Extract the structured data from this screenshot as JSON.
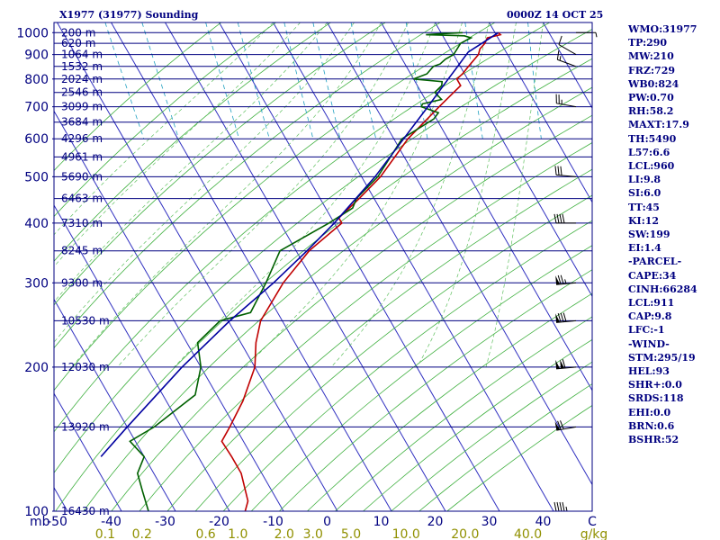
{
  "chart_data": {
    "type": "line",
    "title": "X1977 (31977) Sounding",
    "time_label": "0000Z 14 OCT 25",
    "pressure_ticks": [
      {
        "p": 100,
        "label": "100"
      },
      {
        "p": 200,
        "label": "200"
      },
      {
        "p": 300,
        "label": "300"
      },
      {
        "p": 400,
        "label": "400"
      },
      {
        "p": 500,
        "label": "500"
      },
      {
        "p": 600,
        "label": "600"
      },
      {
        "p": 700,
        "label": "700"
      },
      {
        "p": 800,
        "label": "800"
      },
      {
        "p": 900,
        "label": "900"
      },
      {
        "p": 1000,
        "label": "1000"
      }
    ],
    "height_levels": [
      {
        "p": 100,
        "label": "16430 m"
      },
      {
        "p": 150,
        "label": "13920 m"
      },
      {
        "p": 200,
        "label": "12030 m"
      },
      {
        "p": 250,
        "label": "10530 m"
      },
      {
        "p": 300,
        "label": "9300 m"
      },
      {
        "p": 350,
        "label": "8245 m"
      },
      {
        "p": 400,
        "label": "7310 m"
      },
      {
        "p": 450,
        "label": "6463 m"
      },
      {
        "p": 500,
        "label": "5690 m"
      },
      {
        "p": 550,
        "label": "4961 m"
      },
      {
        "p": 600,
        "label": "4296 m"
      },
      {
        "p": 650,
        "label": "3684 m"
      },
      {
        "p": 700,
        "label": "3099 m"
      },
      {
        "p": 750,
        "label": "2546 m"
      },
      {
        "p": 800,
        "label": "2024 m"
      },
      {
        "p": 850,
        "label": "1532 m"
      },
      {
        "p": 900,
        "label": "1064 m"
      },
      {
        "p": 950,
        "label": "620 m"
      },
      {
        "p": 1000,
        "label": "200 m"
      }
    ],
    "temperature_ticks": [
      {
        "t": -50,
        "label": "-50"
      },
      {
        "t": -40,
        "label": "-40"
      },
      {
        "t": -30,
        "label": "-30"
      },
      {
        "t": -20,
        "label": "-20"
      },
      {
        "t": -10,
        "label": "-10"
      },
      {
        "t": 0,
        "label": "0"
      },
      {
        "t": 10,
        "label": "10"
      },
      {
        "t": 20,
        "label": "20"
      },
      {
        "t": 30,
        "label": "30"
      },
      {
        "t": 40,
        "label": "40"
      }
    ],
    "x_axis_unit": "C",
    "y_axis_unit": "mb",
    "mixing_ratio_ticks": [
      {
        "w": 0.1,
        "label": "0.1"
      },
      {
        "w": 0.2,
        "label": "0.2"
      },
      {
        "w": 0.6,
        "label": "0.6"
      },
      {
        "w": 1.0,
        "label": "1.0"
      },
      {
        "w": 2.0,
        "label": "2.0"
      },
      {
        "w": 3.0,
        "label": "3.0"
      },
      {
        "w": 5.0,
        "label": "5.0"
      },
      {
        "w": 10.0,
        "label": "10.0"
      },
      {
        "w": 20.0,
        "label": "20.0"
      },
      {
        "w": 40.0,
        "label": "40.0"
      }
    ],
    "mixing_ratio_unit": "g/kg",
    "xlim": [
      -50,
      50
    ],
    "ylim": [
      1050,
      100
    ],
    "y_scale": "log",
    "series": [
      {
        "role": "temperature",
        "color": "#c00000",
        "points": [
          [
            1000,
            30.6
          ],
          [
            990,
            30.8
          ],
          [
            975,
            28.0
          ],
          [
            950,
            27.0
          ],
          [
            925,
            25.5
          ],
          [
            900,
            24.6
          ],
          [
            850,
            21.5
          ],
          [
            820,
            19.6
          ],
          [
            800,
            18.0
          ],
          [
            775,
            18.0
          ],
          [
            750,
            16.0
          ],
          [
            700,
            11.8
          ],
          [
            600,
            2.6
          ],
          [
            500,
            -6.5
          ],
          [
            450,
            -12.8
          ],
          [
            410,
            -18.6
          ],
          [
            400,
            -18.6
          ],
          [
            350,
            -27.6
          ],
          [
            300,
            -35.8
          ],
          [
            250,
            -44.0
          ],
          [
            225,
            -47.2
          ],
          [
            200,
            -50.0
          ],
          [
            170,
            -55.8
          ],
          [
            150,
            -61.0
          ],
          [
            140,
            -64.0
          ],
          [
            130,
            -63.8
          ],
          [
            120,
            -63.8
          ],
          [
            105,
            -65.5
          ],
          [
            100,
            -67.1
          ]
        ]
      },
      {
        "role": "dewpoint",
        "color": "#006000",
        "points": [
          [
            1000,
            24.0
          ],
          [
            995,
            20.0
          ],
          [
            990,
            17.0
          ],
          [
            985,
            24.0
          ],
          [
            975,
            25.0
          ],
          [
            950,
            22.5
          ],
          [
            900,
            20.0
          ],
          [
            880,
            18.0
          ],
          [
            860,
            16.5
          ],
          [
            850,
            15.0
          ],
          [
            820,
            13.0
          ],
          [
            800,
            10.0
          ],
          [
            790,
            15.0
          ],
          [
            775,
            14.5
          ],
          [
            750,
            12.5
          ],
          [
            725,
            13.0
          ],
          [
            710,
            9.0
          ],
          [
            700,
            8.5
          ],
          [
            680,
            11.0
          ],
          [
            660,
            9.5
          ],
          [
            600,
            1.5
          ],
          [
            500,
            -7.0
          ],
          [
            450,
            -13.3
          ],
          [
            430,
            -15.0
          ],
          [
            400,
            -21.0
          ],
          [
            350,
            -33.0
          ],
          [
            300,
            -39.0
          ],
          [
            260,
            -45.0
          ],
          [
            250,
            -51.5
          ],
          [
            225,
            -58.0
          ],
          [
            200,
            -60.0
          ],
          [
            175,
            -64.0
          ],
          [
            150,
            -75.0
          ],
          [
            140,
            -81.0
          ],
          [
            130,
            -80.0
          ],
          [
            120,
            -83.0
          ],
          [
            110,
            -84.0
          ],
          [
            100,
            -85.0
          ]
        ]
      },
      {
        "role": "parcel",
        "color": "#0000a0",
        "points": [
          [
            1000,
            30.6
          ],
          [
            960,
            27.3
          ],
          [
            911,
            23.0
          ],
          [
            850,
            19.5
          ],
          [
            800,
            16.4
          ],
          [
            700,
            9.7
          ],
          [
            600,
            1.8
          ],
          [
            500,
            -7.5
          ],
          [
            400,
            -20.0
          ],
          [
            350,
            -28.0
          ],
          [
            300,
            -37.6
          ],
          [
            250,
            -49.7
          ],
          [
            200,
            -63.5
          ],
          [
            150,
            -80.0
          ],
          [
            130,
            -88.0
          ]
        ]
      }
    ],
    "wind_barbs": [
      {
        "p": 1000,
        "dir": 90,
        "kt": 5
      },
      {
        "p": 900,
        "dir": 300,
        "kt": 10
      },
      {
        "p": 850,
        "dir": 290,
        "kt": 15
      },
      {
        "p": 700,
        "dir": 280,
        "kt": 25
      },
      {
        "p": 500,
        "dir": 275,
        "kt": 30
      },
      {
        "p": 400,
        "dir": 270,
        "kt": 40
      },
      {
        "p": 300,
        "dir": 265,
        "kt": 75
      },
      {
        "p": 250,
        "dir": 265,
        "kt": 80
      },
      {
        "p": 200,
        "dir": 265,
        "kt": 110
      },
      {
        "p": 150,
        "dir": 260,
        "kt": 70
      },
      {
        "p": 100,
        "dir": 270,
        "kt": 45
      }
    ]
  },
  "stats": [
    "WMO:31977",
    "TP:290",
    "MW:210",
    "FRZ:729",
    "WB0:824",
    "PW:0.70",
    "RH:58.2",
    "MAXT:17.9",
    "TH:5490",
    "L57:6.6",
    "LCL:960",
    "LI:9.8",
    "SI:6.0",
    "TT:45",
    "KI:12",
    "SW:199",
    "EI:1.4",
    "-PARCEL-",
    "CAPE:34",
    "CINH:66284",
    "LCL:911",
    "CAP:9.8",
    "LFC:-1",
    "-WIND-",
    "STM:295/19",
    "HEL:93",
    "SHR+:0.0",
    "SRDS:118",
    "EHI:0.0",
    "BRN:0.6",
    "BSHR:52"
  ]
}
